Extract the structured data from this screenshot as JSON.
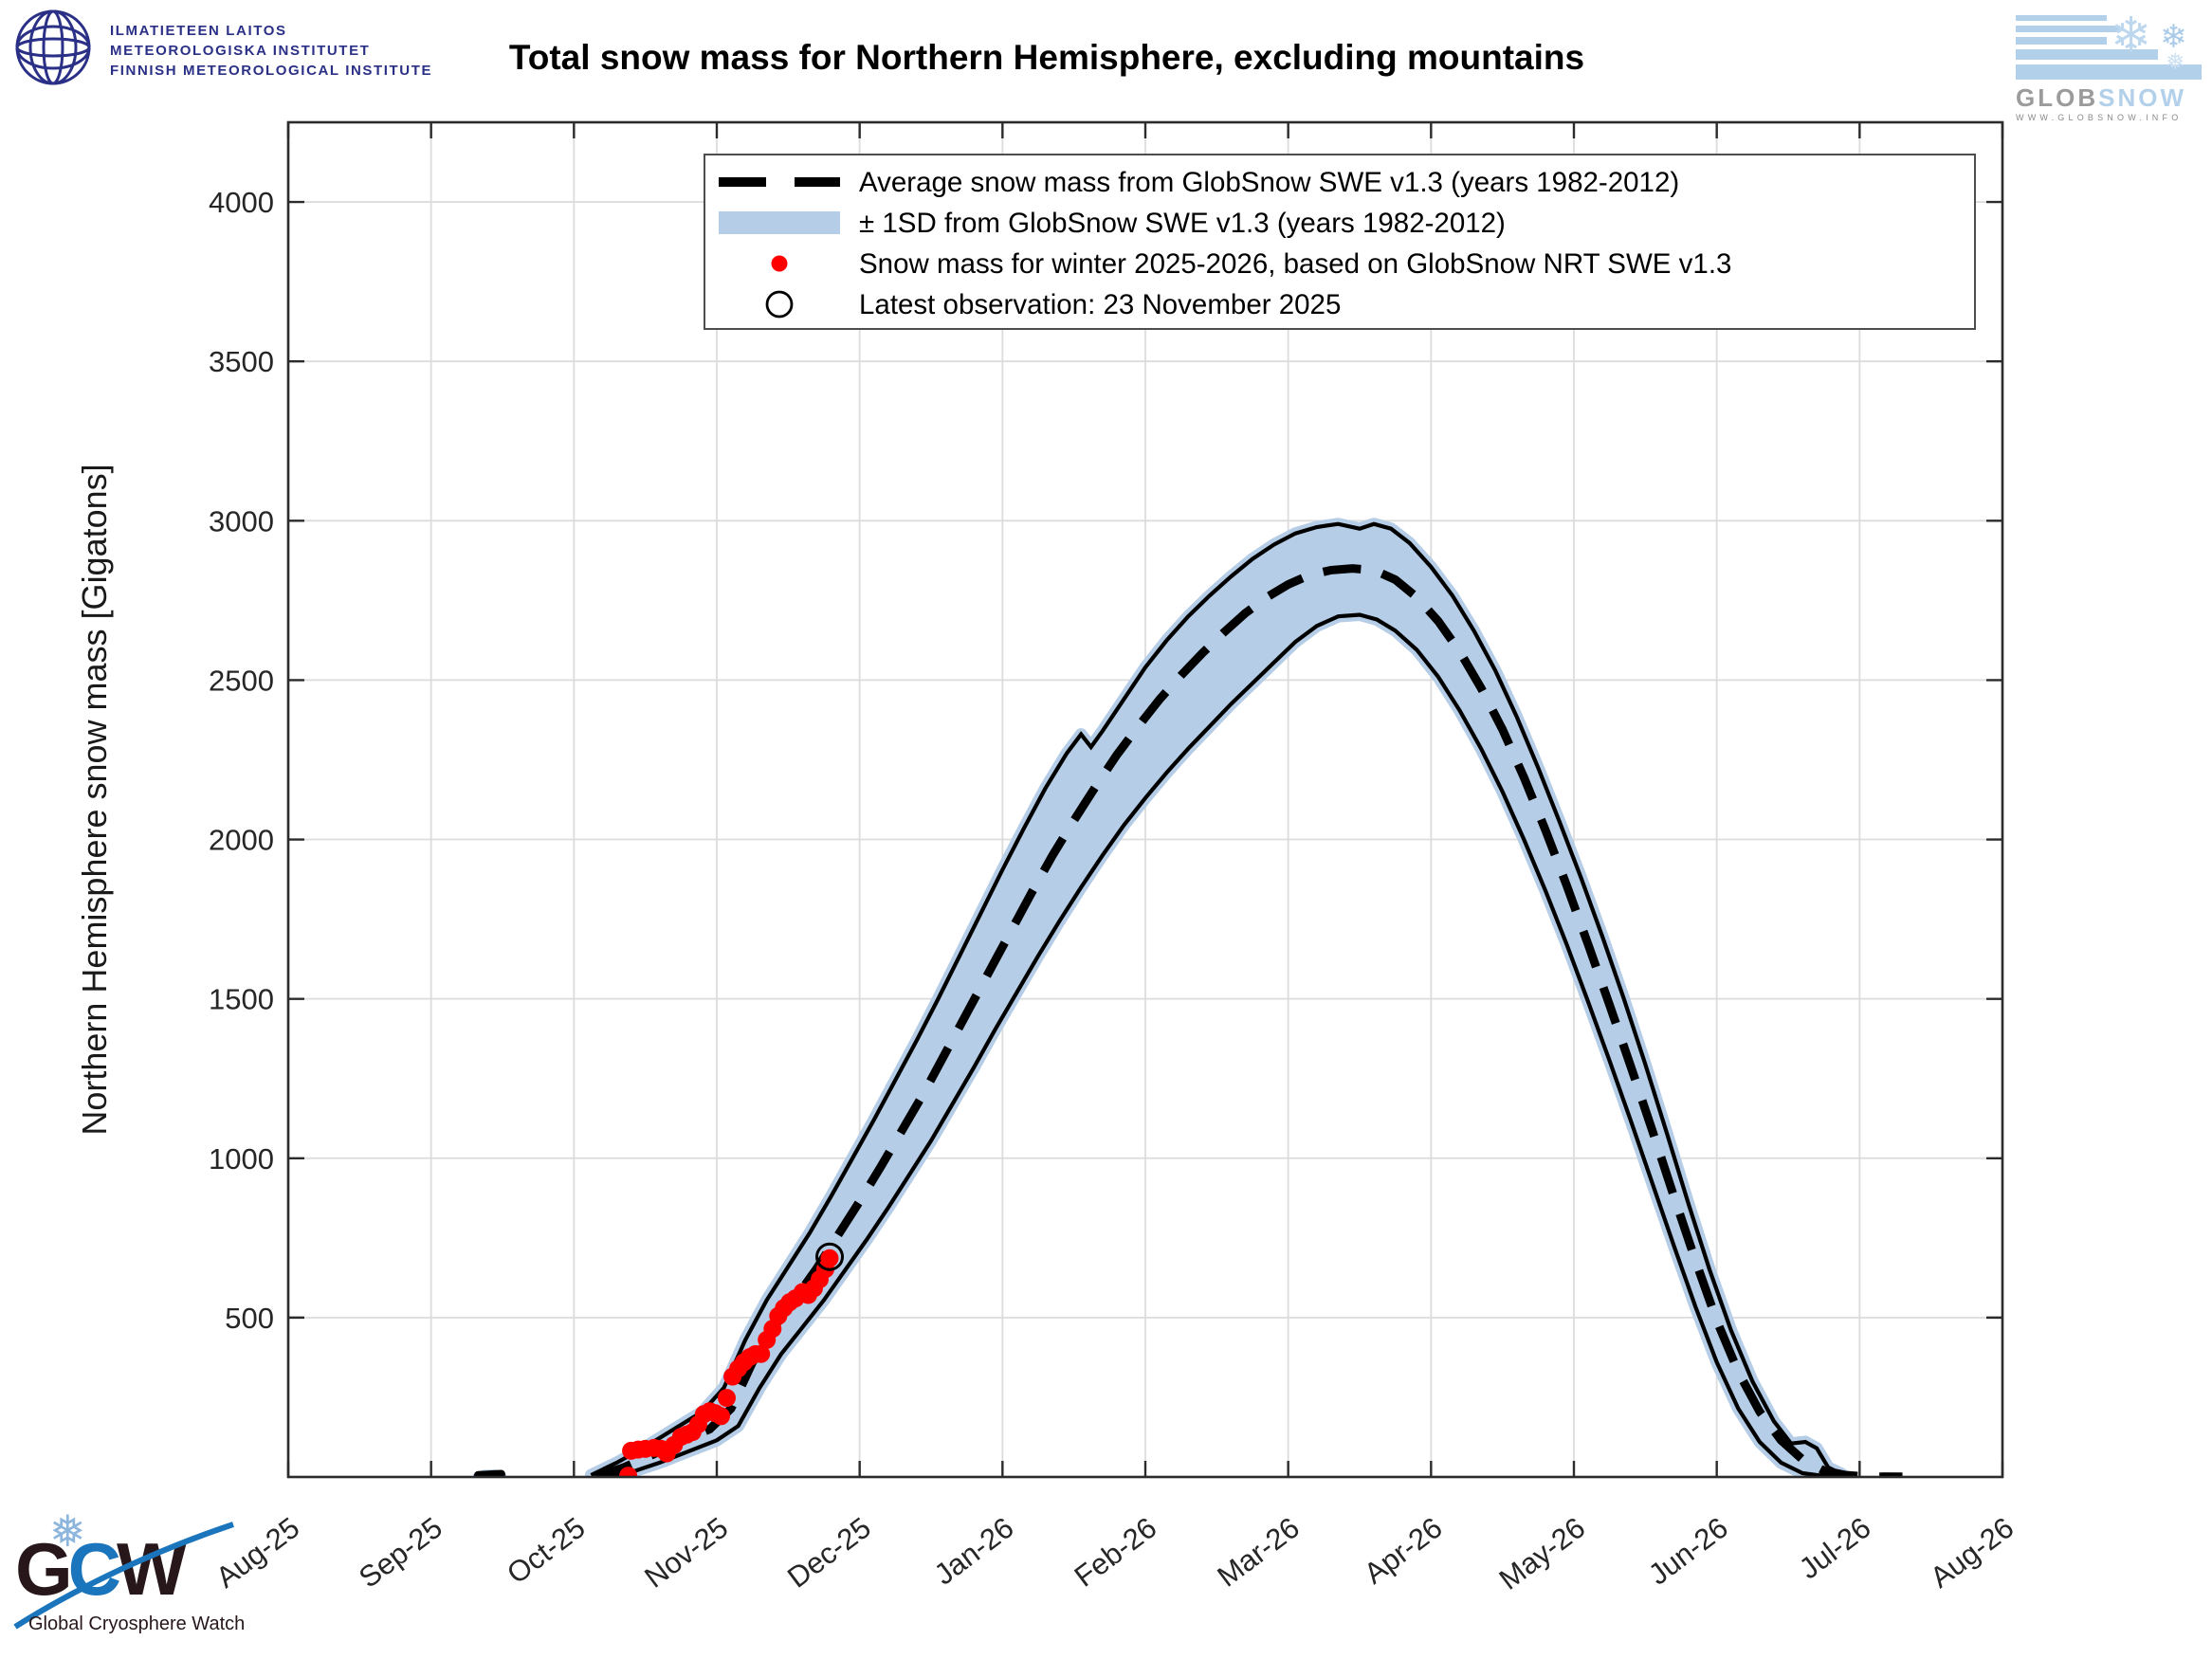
{
  "header": {
    "fmi": {
      "lines": [
        "ILMATIETEEN LAITOS",
        "METEOROLOGISKA INSTITUTET",
        "FINNISH METEOROLOGICAL INSTITUTE"
      ],
      "color": "#2b3087"
    },
    "globsnow": {
      "brand_part1": "GLOB",
      "brand_part2": "SNOW",
      "url": "WWW.GLOBSNOW.INFO",
      "stripe_color": "#b3d0ea",
      "gray": "#9b9b9b"
    }
  },
  "footer": {
    "gcw": {
      "letter_g": "G",
      "letter_c": "C",
      "letter_w": "W",
      "caption": "Global Cryosphere Watch",
      "blue": "#1a75bc",
      "dark": "#27171a"
    }
  },
  "chart_data": {
    "type": "line",
    "title": "Total snow mass for Northern Hemisphere, excluding mountains",
    "ylabel": "Northern Hemisphere snow mass [Gigatons]",
    "xlabel": "",
    "x_unit": "months since 2025-08-01",
    "xlim": [
      0,
      12
    ],
    "ylim": [
      0,
      4250
    ],
    "x_tick_labels": [
      "Aug-25",
      "Sep-25",
      "Oct-25",
      "Nov-25",
      "Dec-25",
      "Jan-26",
      "Feb-26",
      "Mar-26",
      "Apr-26",
      "May-26",
      "Jun-26",
      "Jul-26",
      "Aug-26"
    ],
    "y_tick_values": [
      500,
      1000,
      1500,
      2000,
      2500,
      3000,
      3500,
      4000
    ],
    "grid": true,
    "legend_position": "top-center-inside",
    "legend_entries": [
      {
        "symbol": "dashed-line",
        "label": "Average snow mass from GlobSnow SWE v1.3 (years 1982-2012)"
      },
      {
        "symbol": "band-swatch",
        "label": "± 1SD from GlobSnow SWE v1.3 (years 1982-2012)"
      },
      {
        "symbol": "red-dot",
        "label": "Snow mass for winter 2025-2026, based on GlobSnow NRT SWE v1.3"
      },
      {
        "symbol": "open-circle",
        "label": "Latest observation: 23 November 2025"
      }
    ],
    "colors": {
      "band": "#b5cde6",
      "band_edge": "#000000",
      "average": "#000000",
      "current": "#ff0000",
      "latest_marker": "#000000",
      "grid": "#dcdcdc",
      "axis": "#2b2b2b",
      "tick_text": "#262626"
    },
    "series": [
      {
        "id": "band",
        "name": "± 1SD from GlobSnow SWE v1.3 (years 1982-2012)",
        "type": "band",
        "upper": [
          [
            2.12,
            6
          ],
          [
            2.3,
            45
          ],
          [
            2.5,
            95
          ],
          [
            2.7,
            150
          ],
          [
            2.9,
            205
          ],
          [
            3.05,
            280
          ],
          [
            3.2,
            430
          ],
          [
            3.35,
            555
          ],
          [
            3.5,
            660
          ],
          [
            3.65,
            765
          ],
          [
            3.8,
            880
          ],
          [
            3.95,
            1000
          ],
          [
            4.1,
            1120
          ],
          [
            4.25,
            1245
          ],
          [
            4.4,
            1370
          ],
          [
            4.55,
            1500
          ],
          [
            4.7,
            1635
          ],
          [
            4.85,
            1770
          ],
          [
            5.0,
            1905
          ],
          [
            5.15,
            2035
          ],
          [
            5.3,
            2160
          ],
          [
            5.45,
            2270
          ],
          [
            5.55,
            2330
          ],
          [
            5.62,
            2290
          ],
          [
            5.7,
            2340
          ],
          [
            5.85,
            2440
          ],
          [
            6.0,
            2540
          ],
          [
            6.15,
            2625
          ],
          [
            6.3,
            2700
          ],
          [
            6.45,
            2765
          ],
          [
            6.6,
            2825
          ],
          [
            6.75,
            2880
          ],
          [
            6.9,
            2925
          ],
          [
            7.05,
            2960
          ],
          [
            7.2,
            2980
          ],
          [
            7.35,
            2990
          ],
          [
            7.5,
            2975
          ],
          [
            7.6,
            2990
          ],
          [
            7.72,
            2975
          ],
          [
            7.85,
            2930
          ],
          [
            8.0,
            2855
          ],
          [
            8.15,
            2765
          ],
          [
            8.3,
            2655
          ],
          [
            8.45,
            2530
          ],
          [
            8.6,
            2385
          ],
          [
            8.75,
            2225
          ],
          [
            8.9,
            2055
          ],
          [
            9.05,
            1880
          ],
          [
            9.2,
            1695
          ],
          [
            9.35,
            1500
          ],
          [
            9.5,
            1295
          ],
          [
            9.65,
            1080
          ],
          [
            9.8,
            860
          ],
          [
            9.95,
            650
          ],
          [
            10.1,
            460
          ],
          [
            10.25,
            300
          ],
          [
            10.4,
            175
          ],
          [
            10.52,
            105
          ],
          [
            10.62,
            110
          ],
          [
            10.7,
            90
          ],
          [
            10.78,
            30
          ],
          [
            10.88,
            8
          ]
        ],
        "lower": [
          [
            2.2,
            0
          ],
          [
            2.4,
            15
          ],
          [
            2.6,
            45
          ],
          [
            2.8,
            80
          ],
          [
            3.0,
            115
          ],
          [
            3.15,
            160
          ],
          [
            3.3,
            280
          ],
          [
            3.45,
            385
          ],
          [
            3.6,
            470
          ],
          [
            3.75,
            555
          ],
          [
            3.9,
            650
          ],
          [
            4.05,
            745
          ],
          [
            4.2,
            845
          ],
          [
            4.35,
            950
          ],
          [
            4.5,
            1055
          ],
          [
            4.65,
            1170
          ],
          [
            4.8,
            1285
          ],
          [
            4.95,
            1405
          ],
          [
            5.1,
            1520
          ],
          [
            5.25,
            1635
          ],
          [
            5.4,
            1745
          ],
          [
            5.55,
            1850
          ],
          [
            5.7,
            1950
          ],
          [
            5.85,
            2045
          ],
          [
            6.0,
            2130
          ],
          [
            6.15,
            2210
          ],
          [
            6.3,
            2285
          ],
          [
            6.45,
            2355
          ],
          [
            6.6,
            2425
          ],
          [
            6.75,
            2490
          ],
          [
            6.9,
            2555
          ],
          [
            7.05,
            2620
          ],
          [
            7.2,
            2670
          ],
          [
            7.35,
            2700
          ],
          [
            7.5,
            2705
          ],
          [
            7.62,
            2690
          ],
          [
            7.75,
            2655
          ],
          [
            7.9,
            2595
          ],
          [
            8.05,
            2510
          ],
          [
            8.2,
            2405
          ],
          [
            8.35,
            2285
          ],
          [
            8.5,
            2150
          ],
          [
            8.65,
            2000
          ],
          [
            8.8,
            1840
          ],
          [
            8.95,
            1670
          ],
          [
            9.1,
            1490
          ],
          [
            9.25,
            1305
          ],
          [
            9.4,
            1115
          ],
          [
            9.55,
            920
          ],
          [
            9.7,
            725
          ],
          [
            9.85,
            535
          ],
          [
            10.0,
            360
          ],
          [
            10.15,
            215
          ],
          [
            10.3,
            110
          ],
          [
            10.45,
            45
          ],
          [
            10.6,
            12
          ],
          [
            10.75,
            3
          ],
          [
            10.88,
            0
          ]
        ]
      },
      {
        "id": "average",
        "name": "Average snow mass from GlobSnow SWE v1.3 (years 1982-2012)",
        "type": "dashed-line",
        "points": [
          [
            2.15,
            0
          ],
          [
            2.35,
            30
          ],
          [
            2.55,
            70
          ],
          [
            2.75,
            112
          ],
          [
            2.95,
            150
          ],
          [
            3.1,
            215
          ],
          [
            3.25,
            360
          ],
          [
            3.4,
            470
          ],
          [
            3.55,
            560
          ],
          [
            3.7,
            655
          ],
          [
            3.85,
            760
          ],
          [
            4.0,
            865
          ],
          [
            4.15,
            975
          ],
          [
            4.3,
            1090
          ],
          [
            4.45,
            1205
          ],
          [
            4.6,
            1330
          ],
          [
            4.75,
            1455
          ],
          [
            4.9,
            1580
          ],
          [
            5.05,
            1705
          ],
          [
            5.2,
            1830
          ],
          [
            5.35,
            1950
          ],
          [
            5.5,
            2060
          ],
          [
            5.65,
            2165
          ],
          [
            5.8,
            2265
          ],
          [
            5.95,
            2355
          ],
          [
            6.1,
            2440
          ],
          [
            6.25,
            2515
          ],
          [
            6.4,
            2585
          ],
          [
            6.55,
            2650
          ],
          [
            6.7,
            2710
          ],
          [
            6.85,
            2760
          ],
          [
            7.0,
            2800
          ],
          [
            7.15,
            2830
          ],
          [
            7.3,
            2845
          ],
          [
            7.45,
            2850
          ],
          [
            7.6,
            2845
          ],
          [
            7.75,
            2815
          ],
          [
            7.9,
            2760
          ],
          [
            8.05,
            2685
          ],
          [
            8.2,
            2590
          ],
          [
            8.35,
            2475
          ],
          [
            8.5,
            2345
          ],
          [
            8.65,
            2195
          ],
          [
            8.8,
            2030
          ],
          [
            8.95,
            1855
          ],
          [
            9.1,
            1670
          ],
          [
            9.25,
            1480
          ],
          [
            9.4,
            1285
          ],
          [
            9.55,
            1085
          ],
          [
            9.7,
            880
          ],
          [
            9.85,
            680
          ],
          [
            10.0,
            490
          ],
          [
            10.15,
            330
          ],
          [
            10.3,
            205
          ],
          [
            10.45,
            115
          ],
          [
            10.6,
            55
          ],
          [
            10.75,
            20
          ],
          [
            10.9,
            6
          ],
          [
            11.05,
            1
          ],
          [
            11.3,
            0
          ]
        ]
      },
      {
        "id": "early_september_blip",
        "type": "band-dash",
        "band": [
          [
            1.3,
            0
          ],
          [
            1.37,
            14
          ],
          [
            1.45,
            15
          ],
          [
            1.52,
            0
          ]
        ],
        "dash": [
          [
            1.33,
            5
          ],
          [
            1.49,
            9
          ]
        ]
      },
      {
        "id": "july_tail_dash",
        "type": "dash",
        "points": [
          [
            11.16,
            2
          ],
          [
            11.3,
            2
          ]
        ]
      },
      {
        "id": "current_winter",
        "name": "Snow mass for winter 2025-2026, based on GlobSnow NRT SWE v1.3",
        "type": "scatter",
        "marker": "filled-circle",
        "points": [
          [
            2.38,
            4
          ],
          [
            2.4,
            82
          ],
          [
            2.45,
            86
          ],
          [
            2.5,
            88
          ],
          [
            2.56,
            91
          ],
          [
            2.61,
            88
          ],
          [
            2.65,
            74
          ],
          [
            2.7,
            100
          ],
          [
            2.75,
            126
          ],
          [
            2.79,
            133
          ],
          [
            2.83,
            141
          ],
          [
            2.87,
            165
          ],
          [
            2.91,
            197
          ],
          [
            2.95,
            206
          ],
          [
            2.99,
            200
          ],
          [
            3.03,
            191
          ],
          [
            3.07,
            248
          ],
          [
            3.11,
            315
          ],
          [
            3.15,
            340
          ],
          [
            3.19,
            360
          ],
          [
            3.23,
            376
          ],
          [
            3.27,
            385
          ],
          [
            3.31,
            386
          ],
          [
            3.35,
            430
          ],
          [
            3.39,
            465
          ],
          [
            3.43,
            505
          ],
          [
            3.47,
            530
          ],
          [
            3.51,
            548
          ],
          [
            3.55,
            560
          ],
          [
            3.6,
            580
          ],
          [
            3.64,
            571
          ],
          [
            3.68,
            592
          ],
          [
            3.72,
            620
          ],
          [
            3.76,
            652
          ],
          [
            3.79,
            686
          ]
        ]
      },
      {
        "id": "latest_observation",
        "name": "Latest observation: 23 November 2025",
        "type": "scatter",
        "marker": "open-circle",
        "points": [
          [
            3.79,
            691
          ]
        ]
      }
    ]
  }
}
